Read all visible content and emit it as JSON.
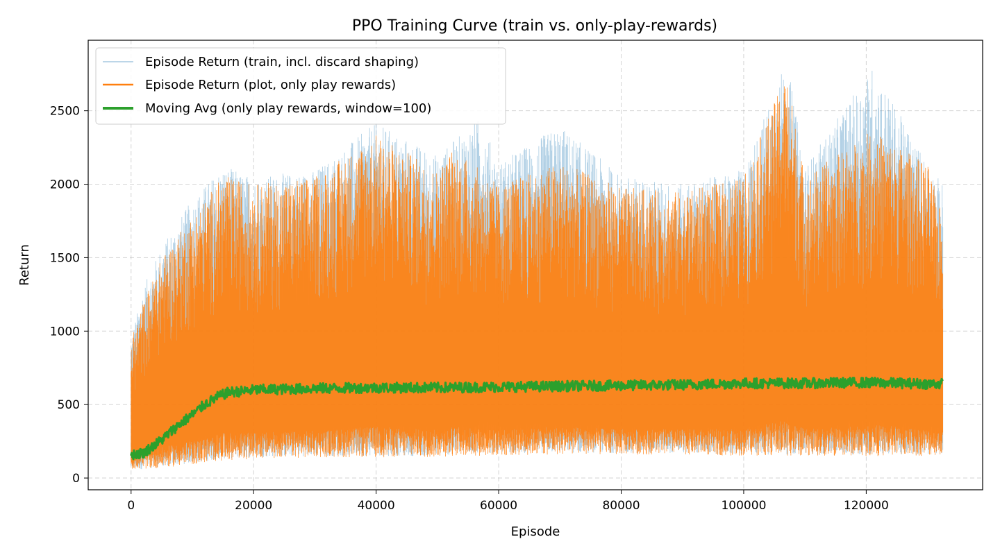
{
  "chart_data": {
    "type": "line",
    "title": "PPO Training Curve (train vs. only-play-rewards)",
    "xlabel": "Episode",
    "ylabel": "Return",
    "xlim": [
      -7000,
      139000
    ],
    "ylim": [
      -80,
      2980
    ],
    "xticks": [
      0,
      20000,
      40000,
      60000,
      80000,
      100000,
      120000
    ],
    "yticks": [
      0,
      500,
      1000,
      1500,
      2000,
      2500
    ],
    "grid": true,
    "legend_position": "top-left",
    "series": [
      {
        "name": "Episode Return (train, incl. discard shaping)",
        "color": "#1f77b4",
        "style": "thin-transparent",
        "x": [
          0,
          2000,
          5000,
          10000,
          15000,
          20000,
          30000,
          40000,
          50000,
          57000,
          60000,
          70000,
          80000,
          90000,
          100000,
          107000,
          110000,
          121000,
          130000,
          132500
        ],
        "upper": [
          960,
          1300,
          1580,
          1900,
          2130,
          2050,
          2100,
          2420,
          2200,
          2460,
          2150,
          2400,
          2060,
          2000,
          2100,
          2860,
          2120,
          2800,
          2150,
          2000
        ],
        "lower": [
          60,
          60,
          80,
          100,
          130,
          140,
          150,
          150,
          150,
          170,
          170,
          170,
          170,
          170,
          160,
          160,
          160,
          160,
          160,
          170
        ]
      },
      {
        "name": "Episode Return (plot, only play rewards)",
        "color": "#ff7f0e",
        "style": "spiky",
        "x": [
          0,
          2000,
          5000,
          10000,
          15000,
          20000,
          30000,
          40000,
          50000,
          52500,
          60000,
          70000,
          80000,
          90000,
          100000,
          107000,
          110000,
          121000,
          130000,
          132500
        ],
        "upper": [
          940,
          1200,
          1500,
          1790,
          2060,
          2000,
          2050,
          2340,
          2100,
          2250,
          2000,
          2150,
          1980,
          1950,
          2050,
          2760,
          2050,
          2370,
          2140,
          1780
        ],
        "lower": [
          60,
          60,
          70,
          90,
          120,
          130,
          140,
          140,
          140,
          150,
          150,
          160,
          160,
          160,
          150,
          150,
          150,
          150,
          150,
          160
        ]
      },
      {
        "name": "Moving Avg (only play rewards, window=100)",
        "color": "#2ca02c",
        "style": "thick",
        "x": [
          0,
          2000,
          5000,
          8000,
          10000,
          12000,
          14000,
          16000,
          18000,
          20000,
          25000,
          30000,
          40000,
          50000,
          60000,
          70000,
          80000,
          90000,
          100000,
          110000,
          120000,
          132500
        ],
        "values": [
          160,
          170,
          260,
          370,
          430,
          500,
          550,
          585,
          590,
          600,
          605,
          610,
          615,
          615,
          620,
          625,
          630,
          635,
          645,
          645,
          650,
          640
        ]
      }
    ]
  }
}
